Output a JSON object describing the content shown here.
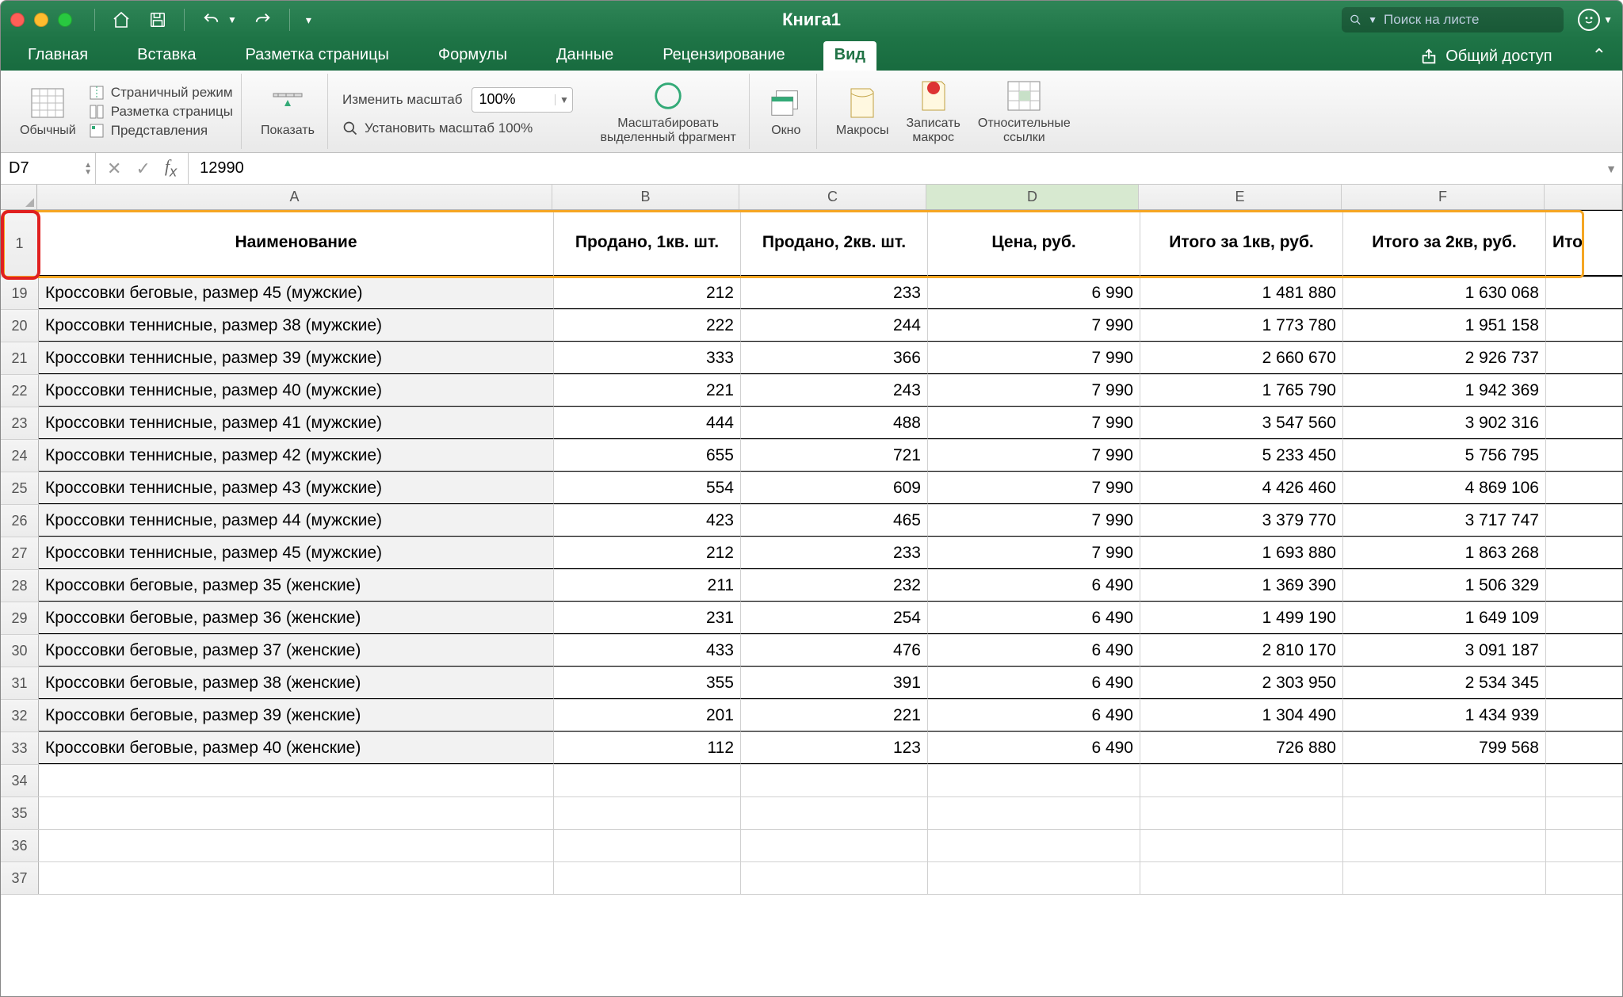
{
  "titlebar": {
    "doc_title": "Книга1",
    "search_placeholder": "Поиск на листе"
  },
  "tabs": {
    "items": [
      "Главная",
      "Вставка",
      "Разметка страницы",
      "Формулы",
      "Данные",
      "Рецензирование",
      "Вид"
    ],
    "active_index": 6,
    "share_label": "Общий доступ"
  },
  "ribbon": {
    "normal_view": "Обычный",
    "page_break": "Страничный режим",
    "page_layout": "Разметка страницы",
    "custom_views": "Представления",
    "show_btn": "Показать",
    "zoom_label": "Изменить масштаб",
    "zoom_value": "100%",
    "zoom_100": "Установить масштаб 100%",
    "zoom_selection_l1": "Масштабировать",
    "zoom_selection_l2": "выделенный фрагмент",
    "window_btn": "Окно",
    "macros_btn": "Макросы",
    "record_macro_l1": "Записать",
    "record_macro_l2": "макрос",
    "relative_refs_l1": "Относительные",
    "relative_refs_l2": "ссылки"
  },
  "formula_bar": {
    "cell_ref": "D7",
    "formula_value": "12990"
  },
  "grid": {
    "columns": [
      "A",
      "B",
      "C",
      "D",
      "E",
      "F"
    ],
    "selected_col_index": 3,
    "headers": [
      "Наименование",
      "Продано, 1кв. шт.",
      "Продано, 2кв. шт.",
      "Цена, руб.",
      "Итого за 1кв, руб.",
      "Итого за 2кв, руб.",
      "Ито"
    ],
    "header_row_num": "1",
    "data_row_nums": [
      "19",
      "20",
      "21",
      "22",
      "23",
      "24",
      "25",
      "26",
      "27",
      "28",
      "29",
      "30",
      "31",
      "32",
      "33"
    ],
    "empty_row_nums": [
      "34",
      "35",
      "36",
      "37"
    ],
    "rows": [
      {
        "name": "Кроссовки беговые, размер 45 (мужские)",
        "q1": "212",
        "q2": "233",
        "price": "6 990",
        "t1": "1 481 880",
        "t2": "1 630 068"
      },
      {
        "name": "Кроссовки теннисные, размер 38 (мужские)",
        "q1": "222",
        "q2": "244",
        "price": "7 990",
        "t1": "1 773 780",
        "t2": "1 951 158"
      },
      {
        "name": "Кроссовки теннисные, размер 39 (мужские)",
        "q1": "333",
        "q2": "366",
        "price": "7 990",
        "t1": "2 660 670",
        "t2": "2 926 737"
      },
      {
        "name": "Кроссовки теннисные, размер 40 (мужские)",
        "q1": "221",
        "q2": "243",
        "price": "7 990",
        "t1": "1 765 790",
        "t2": "1 942 369"
      },
      {
        "name": "Кроссовки теннисные, размер 41 (мужские)",
        "q1": "444",
        "q2": "488",
        "price": "7 990",
        "t1": "3 547 560",
        "t2": "3 902 316"
      },
      {
        "name": "Кроссовки теннисные, размер 42 (мужские)",
        "q1": "655",
        "q2": "721",
        "price": "7 990",
        "t1": "5 233 450",
        "t2": "5 756 795"
      },
      {
        "name": "Кроссовки теннисные, размер 43 (мужские)",
        "q1": "554",
        "q2": "609",
        "price": "7 990",
        "t1": "4 426 460",
        "t2": "4 869 106"
      },
      {
        "name": "Кроссовки теннисные, размер 44 (мужские)",
        "q1": "423",
        "q2": "465",
        "price": "7 990",
        "t1": "3 379 770",
        "t2": "3 717 747"
      },
      {
        "name": "Кроссовки теннисные, размер 45 (мужские)",
        "q1": "212",
        "q2": "233",
        "price": "7 990",
        "t1": "1 693 880",
        "t2": "1 863 268"
      },
      {
        "name": "Кроссовки беговые, размер 35 (женские)",
        "q1": "211",
        "q2": "232",
        "price": "6 490",
        "t1": "1 369 390",
        "t2": "1 506 329"
      },
      {
        "name": "Кроссовки беговые, размер 36 (женские)",
        "q1": "231",
        "q2": "254",
        "price": "6 490",
        "t1": "1 499 190",
        "t2": "1 649 109"
      },
      {
        "name": "Кроссовки беговые, размер 37 (женские)",
        "q1": "433",
        "q2": "476",
        "price": "6 490",
        "t1": "2 810 170",
        "t2": "3 091 187"
      },
      {
        "name": "Кроссовки беговые, размер 38 (женские)",
        "q1": "355",
        "q2": "391",
        "price": "6 490",
        "t1": "2 303 950",
        "t2": "2 534 345"
      },
      {
        "name": "Кроссовки беговые, размер 39 (женские)",
        "q1": "201",
        "q2": "221",
        "price": "6 490",
        "t1": "1 304 490",
        "t2": "1 434 939"
      },
      {
        "name": "Кроссовки беговые, размер 40 (женские)",
        "q1": "112",
        "q2": "123",
        "price": "6 490",
        "t1": "726 880",
        "t2": "799 568"
      }
    ]
  },
  "colors": {
    "titlebar_bg": "#217346",
    "highlight_orange": "#f5a623",
    "highlight_red": "#e02020"
  }
}
